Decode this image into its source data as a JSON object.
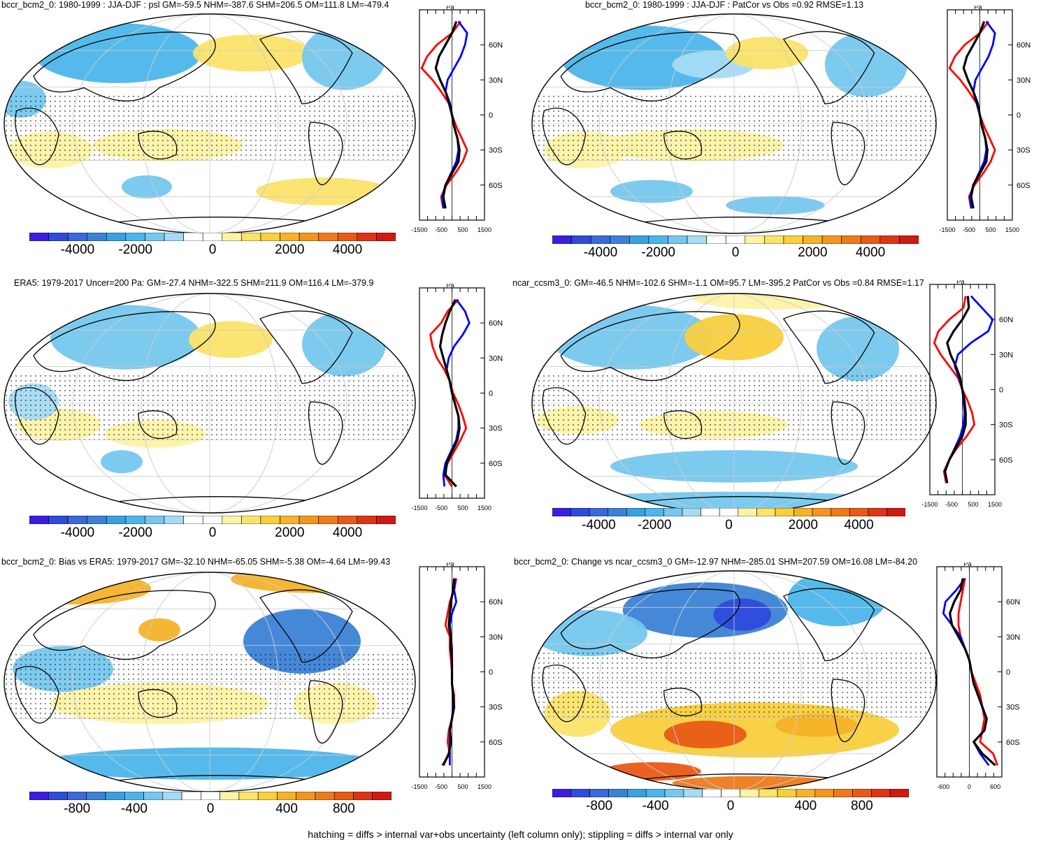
{
  "colors": {
    "ocean_white": "#ffffff",
    "scale": [
      "#3a1fe0",
      "#2f4bdc",
      "#3a6ad8",
      "#3b82d6",
      "#3aa0e0",
      "#4cb6ea",
      "#76c7ee",
      "#a5dbf4",
      "#ffffff",
      "#ffffff",
      "#fdf3a8",
      "#fbe36a",
      "#f9cf3c",
      "#f6b22a",
      "#f29620",
      "#ee7a1a",
      "#e85a16",
      "#dd3514",
      "#cf1a12"
    ]
  },
  "footer_note": "hatching = diffs > internal var+obs uncertainty (left column only); stippling = diffs > internal var only",
  "panels": [
    {
      "id": "p1",
      "title": "bccr_bcm2_0: 1980-1999 : JJA-DJF : psl GM=-59.5 NHM=-387.6 SHM=206.5 OM=111.8 LM=-479.4",
      "colorbar_labels": [
        "-4000",
        "-2000",
        "0",
        "2000",
        "4000"
      ],
      "profile_unit": "Pa",
      "profile_lat_labels": [
        "60N",
        "30N",
        "0",
        "30S",
        "60S"
      ],
      "profile_x_labels": [
        "-1500",
        "-500",
        "500",
        "1500"
      ]
    },
    {
      "id": "p2",
      "title": "bccr_bcm2_0: 1980-1999 : JJA-DJF : PatCor vs Obs =0.92 RMSE=1.13",
      "colorbar_labels": [
        "-4000",
        "-2000",
        "0",
        "2000",
        "4000"
      ],
      "profile_unit": "Pa",
      "profile_lat_labels": [
        "60N",
        "30N",
        "0",
        "30S",
        "60S"
      ],
      "profile_x_labels": [
        "-1500",
        "-500",
        "500",
        "1500"
      ]
    },
    {
      "id": "p3",
      "title": "ERA5: 1979-2017 Uncer=200 Pa: GM=-27.4 NHM=-322.5 SHM=211.9 OM=116.4 LM=-379.9",
      "colorbar_labels": [
        "-4000",
        "-2000",
        "0",
        "2000",
        "4000"
      ],
      "profile_unit": "Pa",
      "profile_lat_labels": [
        "60N",
        "30N",
        "0",
        "30S",
        "60S"
      ],
      "profile_x_labels": [
        "-1500",
        "-500",
        "500",
        "1500"
      ]
    },
    {
      "id": "p4",
      "title": "ncar_ccsm3_0: GM=-46.5 NHM=-102.6 SHM=-1.1 OM=95.7 LM=-395.2 PatCor vs Obs =0.84 RMSE=1.17",
      "colorbar_labels": [
        "-4000",
        "-2000",
        "0",
        "2000",
        "4000"
      ],
      "profile_unit": "Pa",
      "profile_lat_labels": [
        "60N",
        "30N",
        "0",
        "30S",
        "60S"
      ],
      "profile_x_labels": [
        "-1500",
        "-500",
        "500",
        "1500"
      ]
    },
    {
      "id": "p5",
      "title": "bccr_bcm2_0: Bias vs ERA5: 1979-2017 GM=-32.10 NHM=-65.05 SHM=-5.38 OM=-4.64 LM=-99.43",
      "colorbar_labels": [
        "-800",
        "-400",
        "0",
        "400",
        "800"
      ],
      "profile_unit": "Pa",
      "profile_lat_labels": [
        "60N",
        "30N",
        "0",
        "30S",
        "60S"
      ],
      "profile_x_labels": [
        "-1500",
        "-500",
        "500",
        "1500"
      ]
    },
    {
      "id": "p6",
      "title": "bccr_bcm2_0: Change vs ncar_ccsm3_0 GM=-12.97 NHM=-285.01 SHM=207.59 OM=16.08 LM=-84.20",
      "colorbar_labels": [
        "-800",
        "-400",
        "0",
        "400",
        "800"
      ],
      "profile_unit": "Pa",
      "profile_lat_labels": [
        "60N",
        "30N",
        "0",
        "30S",
        "60S"
      ],
      "profile_x_labels": [
        "-600",
        "0",
        "600"
      ]
    }
  ],
  "chart_data": [
    {
      "type": "heatmap",
      "title": "bccr_bcm2_0: 1980-1999 : JJA-DJF : psl GM=-59.5 NHM=-387.6 SHM=206.5 OM=111.8 LM=-479.4",
      "colorbar_range": [
        -5500,
        5500
      ],
      "colorbar_ticks": [
        -4000,
        -2000,
        0,
        2000,
        4000
      ],
      "zonal_profile": {
        "xlabel": "Pa",
        "xlim": [
          -1500,
          1500
        ],
        "lat": [
          80,
          70,
          60,
          50,
          40,
          30,
          20,
          10,
          0,
          -10,
          -20,
          -30,
          -40,
          -50,
          -60,
          -70,
          -80
        ],
        "series": [
          {
            "name": "model",
            "color": "black",
            "values": [
              200,
              0,
              -300,
              -600,
              -750,
              -550,
              -300,
              -100,
              0,
              100,
              250,
              350,
              300,
              0,
              -300,
              -400,
              -300
            ]
          },
          {
            "name": "blue",
            "color": "blue",
            "values": [
              300,
              700,
              600,
              400,
              100,
              -200,
              -300,
              -150,
              0,
              100,
              250,
              300,
              200,
              -50,
              -300,
              -450,
              -400
            ]
          },
          {
            "name": "red",
            "color": "red",
            "values": [
              400,
              0,
              -700,
              -1150,
              -1400,
              -900,
              -500,
              -150,
              0,
              200,
              450,
              700,
              500,
              150,
              -250,
              -500,
              -400
            ]
          }
        ]
      }
    },
    {
      "type": "heatmap",
      "title": "bccr_bcm2_0: 1980-1999 : JJA-DJF : PatCor vs Obs =0.92 RMSE=1.13",
      "colorbar_range": [
        -5500,
        5500
      ],
      "colorbar_ticks": [
        -4000,
        -2000,
        0,
        2000,
        4000
      ],
      "zonal_profile": {
        "xlabel": "Pa",
        "xlim": [
          -1500,
          1500
        ],
        "lat": [
          80,
          70,
          60,
          50,
          40,
          30,
          20,
          10,
          0,
          -10,
          -20,
          -30,
          -40,
          -50,
          -60,
          -70,
          -80
        ],
        "series": [
          {
            "name": "model",
            "color": "black",
            "values": [
              200,
              0,
              -300,
              -600,
              -750,
              -550,
              -300,
              -100,
              0,
              100,
              250,
              350,
              300,
              0,
              -300,
              -400,
              -300
            ]
          },
          {
            "name": "blue",
            "color": "blue",
            "values": [
              300,
              700,
              600,
              400,
              100,
              -200,
              -300,
              -150,
              0,
              100,
              250,
              300,
              200,
              -50,
              -300,
              -450,
              -400
            ]
          },
          {
            "name": "red",
            "color": "red",
            "values": [
              400,
              0,
              -700,
              -1150,
              -1400,
              -900,
              -500,
              -150,
              0,
              200,
              450,
              700,
              500,
              150,
              -250,
              -500,
              -400
            ]
          }
        ]
      }
    },
    {
      "type": "heatmap",
      "title": "ERA5: 1979-2017 Uncer=200 Pa: GM=-27.4 NHM=-322.5 SHM=211.9 OM=116.4 LM=-379.9",
      "colorbar_range": [
        -5500,
        5500
      ],
      "colorbar_ticks": [
        -4000,
        -2000,
        0,
        2000,
        4000
      ],
      "zonal_profile": {
        "xlabel": "Pa",
        "xlim": [
          -1500,
          1500
        ],
        "lat": [
          80,
          70,
          60,
          50,
          40,
          30,
          20,
          10,
          0,
          -10,
          -20,
          -30,
          -40,
          -50,
          -60,
          -70,
          -80
        ],
        "series": [
          {
            "name": "model",
            "color": "black",
            "values": [
              150,
              -100,
              -300,
              -450,
              -550,
              -400,
              -250,
              -100,
              0,
              150,
              300,
              350,
              250,
              0,
              -250,
              -300,
              200
            ]
          },
          {
            "name": "blue",
            "color": "blue",
            "values": [
              200,
              600,
              800,
              500,
              100,
              -150,
              -250,
              -100,
              0,
              150,
              300,
              300,
              200,
              -50,
              -300,
              -400,
              -350
            ]
          },
          {
            "name": "red",
            "color": "red",
            "values": [
              300,
              -200,
              -500,
              -1000,
              -900,
              -700,
              -350,
              -100,
              50,
              300,
              500,
              650,
              400,
              100,
              -200,
              -350,
              0
            ]
          }
        ]
      }
    },
    {
      "type": "heatmap",
      "title": "ncar_ccsm3_0: GM=-46.5 NHM=-102.6 SHM=-1.1 OM=95.7 LM=-395.2 PatCor vs Obs =0.84 RMSE=1.17",
      "colorbar_range": [
        -5500,
        5500
      ],
      "colorbar_ticks": [
        -4000,
        -2000,
        0,
        2000,
        4000
      ],
      "zonal_profile": {
        "xlabel": "Pa",
        "xlim": [
          -1500,
          1500
        ],
        "lat": [
          80,
          70,
          60,
          50,
          40,
          30,
          20,
          10,
          0,
          -10,
          -20,
          -30,
          -40,
          -50,
          -60,
          -70,
          -80
        ],
        "series": [
          {
            "name": "model",
            "color": "black",
            "values": [
              250,
              300,
              0,
              -400,
              -700,
              -550,
              -300,
              -100,
              0,
              100,
              150,
              150,
              0,
              -300,
              -600,
              -800,
              -700
            ]
          },
          {
            "name": "blue",
            "color": "blue",
            "values": [
              400,
              900,
              1400,
              1200,
              400,
              -200,
              -350,
              -150,
              0,
              50,
              100,
              50,
              -100,
              -350,
              -600,
              -800,
              -700
            ]
          },
          {
            "name": "red",
            "color": "red",
            "values": [
              150,
              50,
              -600,
              -1100,
              -1300,
              -1000,
              -600,
              -200,
              0,
              250,
              450,
              550,
              200,
              -250,
              -600,
              -850,
              -750
            ]
          }
        ]
      }
    },
    {
      "type": "heatmap",
      "title": "bccr_bcm2_0: Bias vs ERA5: 1979-2017 GM=-32.10 NHM=-65.05 SHM=-5.38 OM=-4.64 LM=-99.43",
      "colorbar_range": [
        -1100,
        1100
      ],
      "colorbar_ticks": [
        -800,
        -400,
        0,
        400,
        800
      ],
      "zonal_profile": {
        "xlabel": "Pa",
        "xlim": [
          -1500,
          1500
        ],
        "lat": [
          80,
          70,
          60,
          50,
          40,
          30,
          20,
          10,
          0,
          -10,
          -20,
          -30,
          -40,
          -50,
          -60,
          -70,
          -80
        ],
        "series": [
          {
            "name": "model",
            "color": "black",
            "values": [
              100,
              50,
              -50,
              -100,
              -150,
              -50,
              -50,
              0,
              0,
              0,
              50,
              100,
              0,
              -100,
              -50,
              -150,
              -400
            ]
          },
          {
            "name": "blue",
            "color": "blue",
            "values": [
              150,
              100,
              200,
              0,
              -100,
              -50,
              0,
              0,
              0,
              0,
              50,
              50,
              0,
              -100,
              -100,
              -100,
              -100
            ]
          },
          {
            "name": "red",
            "color": "red",
            "values": [
              200,
              100,
              -100,
              -200,
              -300,
              -100,
              -100,
              -50,
              0,
              0,
              100,
              100,
              0,
              -150,
              -200,
              -100,
              -450
            ]
          }
        ]
      }
    },
    {
      "type": "heatmap",
      "title": "bccr_bcm2_0: Change vs ncar_ccsm3_0 GM=-12.97 NHM=-285.01 SHM=207.59 OM=16.08 LM=-84.20",
      "colorbar_range": [
        -1100,
        1100
      ],
      "colorbar_ticks": [
        -800,
        -400,
        0,
        400,
        800
      ],
      "zonal_profile": {
        "xlabel": "Pa",
        "xlim": [
          -750,
          750
        ],
        "lat": [
          80,
          70,
          60,
          50,
          40,
          30,
          20,
          10,
          0,
          -10,
          -20,
          -30,
          -40,
          -50,
          -60,
          -70,
          -80
        ],
        "series": [
          {
            "name": "model",
            "color": "black",
            "values": [
              -150,
              -200,
              -350,
              -450,
              -400,
              -250,
              -100,
              0,
              50,
              100,
              200,
              300,
              400,
              350,
              100,
              300,
              600
            ]
          },
          {
            "name": "blue",
            "color": "blue",
            "values": [
              -100,
              -300,
              -550,
              -600,
              -400,
              -200,
              -100,
              0,
              50,
              100,
              200,
              300,
              400,
              350,
              100,
              250,
              450
            ]
          },
          {
            "name": "red",
            "color": "red",
            "values": [
              -100,
              -150,
              -200,
              -250,
              -250,
              -200,
              -100,
              0,
              50,
              150,
              250,
              300,
              350,
              300,
              250,
              550,
              650
            ]
          }
        ]
      }
    }
  ]
}
